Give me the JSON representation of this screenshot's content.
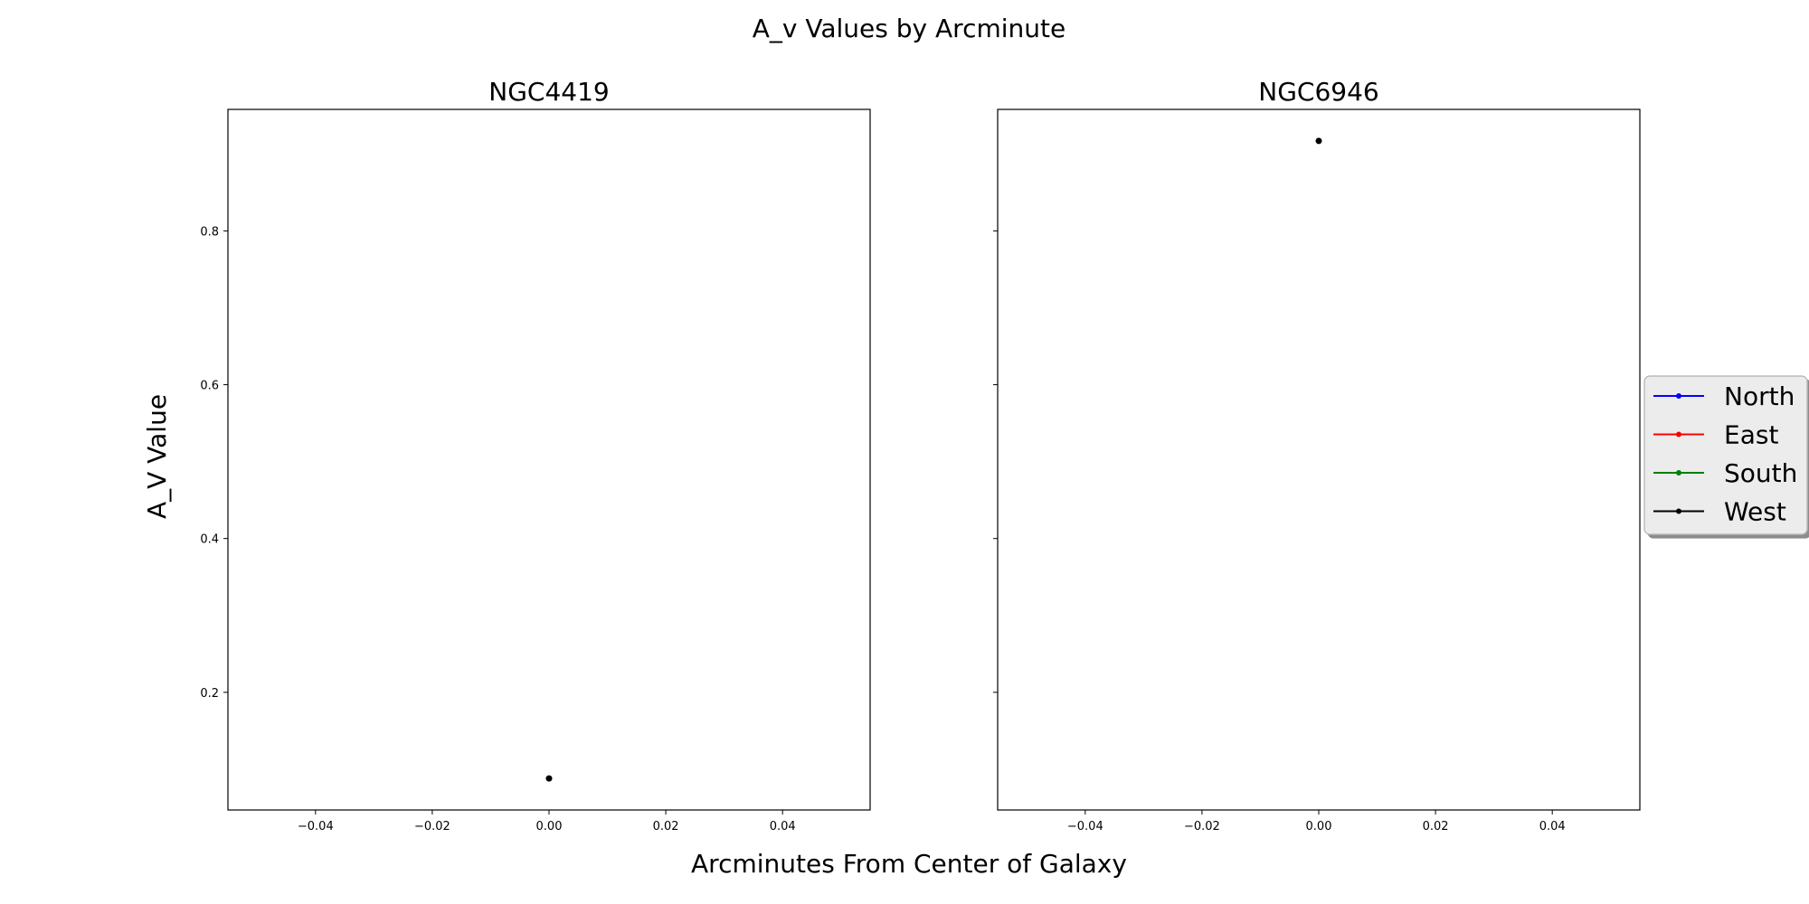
{
  "chart_data": {
    "type": "scatter",
    "title": "A_v Values by Arcminute",
    "xlabel": "Arcminutes From Center of Galaxy",
    "ylabel": "A_V Value",
    "shared_y": true,
    "grid": false,
    "legend": {
      "placement": "right-outside",
      "entries": [
        {
          "name": "North",
          "color": "#0000ff"
        },
        {
          "name": "East",
          "color": "#ff0000"
        },
        {
          "name": "South",
          "color": "#008000"
        },
        {
          "name": "West",
          "color": "#000000"
        }
      ]
    },
    "ylim": [
      0.047,
      0.958
    ],
    "y_ticks": [
      0.2,
      0.4,
      0.6,
      0.8
    ],
    "panels": [
      {
        "title": "NGC4419",
        "xlim": [
          -0.055,
          0.055
        ],
        "x_ticks": [
          -0.04,
          -0.02,
          0.0,
          0.02,
          0.04
        ],
        "show_y_tick_labels": true,
        "series": [
          {
            "name": "North",
            "points": []
          },
          {
            "name": "East",
            "points": []
          },
          {
            "name": "South",
            "points": []
          },
          {
            "name": "West",
            "points": [
              {
                "x": 0.0,
                "y": 0.088
              }
            ]
          }
        ]
      },
      {
        "title": "NGC6946",
        "xlim": [
          -0.055,
          0.055
        ],
        "x_ticks": [
          -0.04,
          -0.02,
          0.0,
          0.02,
          0.04
        ],
        "show_y_tick_labels": false,
        "series": [
          {
            "name": "North",
            "points": []
          },
          {
            "name": "East",
            "points": []
          },
          {
            "name": "South",
            "points": []
          },
          {
            "name": "West",
            "points": [
              {
                "x": 0.0,
                "y": 0.917
              }
            ]
          }
        ]
      }
    ]
  }
}
